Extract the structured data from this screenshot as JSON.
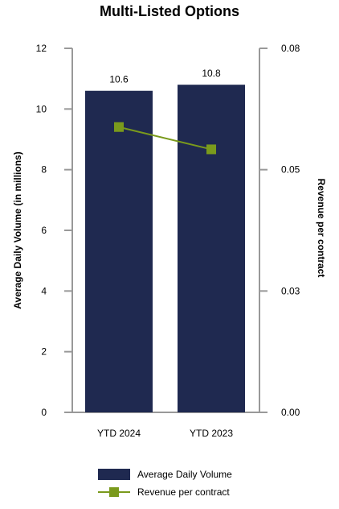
{
  "chart_data": {
    "type": "bar",
    "title": "Multi-Listed Options",
    "categories": [
      "YTD 2024",
      "YTD 2023"
    ],
    "series": [
      {
        "name": "Average Daily Volume",
        "type": "bar",
        "axis": "left",
        "values": [
          10.6,
          10.8
        ],
        "data_labels": [
          "10.6",
          "10.8"
        ],
        "color": "#1f2950"
      },
      {
        "name": "Revenue per contract",
        "type": "line",
        "axis": "right",
        "values": [
          0.0627,
          0.0578
        ],
        "color": "#7a9a1c"
      }
    ],
    "ylabel": "Average Daily Volume (in millions)",
    "ylim": [
      0,
      12
    ],
    "yticks": [
      "0",
      "2",
      "4",
      "6",
      "8",
      "10",
      "12"
    ],
    "y2label": "Revenue per contract",
    "y2lim": [
      0,
      0.08
    ],
    "y2ticks": [
      "0.00",
      "0.03",
      "0.05",
      "0.08"
    ],
    "grid": false,
    "legend_position": "bottom"
  }
}
